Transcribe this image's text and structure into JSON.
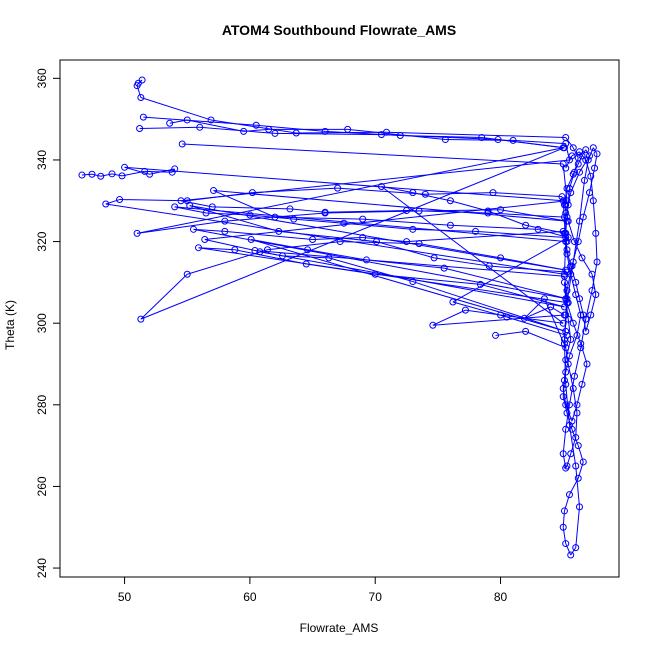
{
  "chart_data": {
    "type": "scatter",
    "title": "ATOM4 Southbound Flowrate_AMS",
    "xlabel": "Flowrate_AMS",
    "ylabel": "Theta (K)",
    "xlim": [
      46.5,
      87.8
    ],
    "ylim": [
      242.5,
      359.8
    ],
    "x_ticks": [
      50,
      60,
      70,
      80
    ],
    "y_ticks": [
      240,
      260,
      280,
      300,
      320,
      340,
      360
    ],
    "grid": false,
    "legend": "none",
    "color": "#0000ff",
    "marker": "open-circle",
    "connected": true,
    "series": [
      {
        "x": [
          51.4,
          51.1,
          51.0,
          51.3,
          56.9,
          63.7,
          70.9,
          85.2,
          85.8,
          86.2,
          85.9,
          85.5,
          85.4,
          85.3,
          85.2,
          85.3,
          85.6,
          86.0,
          86.3,
          86.6,
          86.8,
          87.2,
          87.6,
          87.3,
          86.5,
          85.9,
          85.4,
          85.1,
          85.3,
          85.8,
          86.2,
          86.5,
          86.8,
          87.1,
          86.3,
          85.6,
          85.2,
          85.1,
          85.3,
          85.6,
          86.0,
          86.4,
          86.1,
          85.5,
          85.2,
          85.0,
          85.2,
          85.7,
          86.1,
          86.5,
          86.9,
          86.4,
          85.8,
          85.3,
          85.1,
          85.2,
          85.4,
          85.6,
          85.2,
          85.1,
          85.0,
          85.3,
          85.7,
          86.2,
          86.6,
          86.2,
          85.5,
          85.1,
          85.0,
          85.2,
          85.6,
          86.0,
          86.3,
          86.0,
          85.5,
          85.2,
          85.1,
          85.3,
          85.8,
          86.3,
          86.7,
          87.0,
          87.4,
          87.7,
          87.5,
          87.1,
          86.6,
          86.2,
          85.7,
          85.3,
          85.2,
          85.1,
          85.4,
          85.8,
          86.1,
          86.0,
          85.6,
          85.3,
          85.2,
          85.0,
          85.2,
          85.5,
          85.9,
          86.4,
          86.8,
          87.3,
          87.7,
          87.6,
          87.4,
          87.2,
          86.8,
          86.3,
          85.7,
          85.2
        ],
        "y": [
          359.6,
          358.8,
          358.2,
          355.3,
          349.8,
          346.6,
          346.8,
          345.5,
          343.0,
          340.5,
          337.0,
          333.0,
          329.0,
          326.0,
          322.0,
          318.0,
          314.0,
          310.0,
          306.0,
          302.0,
          298.0,
          302.0,
          307.0,
          312.0,
          316.0,
          320.0,
          325.0,
          329.0,
          333.0,
          336.5,
          339.0,
          341.0,
          342.5,
          341.0,
          337.0,
          332.0,
          327.0,
          322.0,
          317.0,
          312.0,
          307.0,
          302.0,
          297.0,
          292.0,
          288.0,
          284.0,
          280.0,
          276.0,
          280.0,
          285.0,
          290.0,
          295.0,
          300.0,
          305.0,
          310.0,
          306.0,
          301.0,
          296.0,
          291.0,
          286.0,
          282.0,
          278.0,
          274.0,
          270.0,
          266.0,
          262.0,
          258.0,
          254.0,
          250.0,
          246.0,
          243.2,
          245.0,
          255.0,
          265.0,
          275.0,
          285.0,
          295.0,
          305.0,
          315.0,
          325.0,
          335.0,
          340.0,
          343.0,
          341.5,
          338.0,
          332.0,
          326.0,
          320.0,
          314.0,
          308.0,
          302.0,
          296.0,
          290.0,
          284.0,
          278.0,
          272.0,
          268.0,
          265.0,
          264.5,
          268.0,
          274.0,
          280.0,
          287.0,
          294.0,
          301.0,
          308.0,
          315.0,
          322.0,
          330.0,
          336.0,
          340.0,
          342.0,
          341.0,
          338.0
        ]
      },
      {
        "x": [
          46.6,
          47.4,
          48.1,
          49.0,
          49.8,
          51.6,
          53.8,
          54.0,
          52.0,
          50.0,
          85.0,
          85.2,
          85.1,
          48.5,
          49.6,
          55.0,
          60.2,
          67.0,
          74.0,
          79.4,
          84.9,
          85.2
        ],
        "y": [
          336.3,
          336.5,
          336.0,
          336.6,
          336.1,
          337.2,
          337.0,
          337.8,
          336.5,
          338.2,
          330.0,
          320.0,
          312.0,
          329.2,
          330.3,
          330.0,
          332.0,
          333.1,
          331.6,
          332.0,
          331.0,
          329.0
        ]
      },
      {
        "x": [
          53.6,
          55.0,
          59.5,
          61.5,
          67.8,
          75.6,
          81.0,
          85.2,
          85.5,
          54.5,
          57.0,
          63.2,
          66.0,
          72.5,
          79.0,
          85.1,
          85.3,
          54.0,
          56.5,
          60.0,
          63.5,
          67.5,
          73.0,
          78.0,
          85.2
        ],
        "y": [
          349.0,
          349.8,
          347.0,
          347.5,
          347.5,
          345.0,
          344.8,
          344.0,
          340.0,
          330.0,
          328.5,
          328.0,
          327.2,
          327.6,
          327.0,
          326.0,
          320.0,
          328.5,
          327.0,
          326.5,
          325.5,
          324.5,
          323.0,
          322.5,
          321.0
        ]
      },
      {
        "x": [
          54.6,
          85.0,
          85.3,
          56.4,
          60.4,
          85.1,
          85.4,
          55.9,
          58.8,
          64.5,
          70.0,
          78.4,
          85.1,
          60.8,
          62.6,
          66.3,
          73.0,
          85.2,
          60.1,
          64.6,
          69.3,
          75.5,
          85.3,
          55.5,
          58.0,
          65.0,
          69.0,
          72.5,
          85.0
        ],
        "y": [
          343.9,
          339.0,
          330.0,
          320.5,
          317.8,
          311.5,
          305.0,
          318.5,
          318.0,
          314.5,
          312.0,
          309.5,
          304.0,
          317.5,
          316.5,
          316.0,
          310.2,
          298.0,
          320.5,
          318.0,
          315.5,
          313.5,
          306.0,
          323.0,
          322.5,
          320.5,
          321.0,
          320.0,
          322.5
        ]
      },
      {
        "x": [
          51.2,
          56.0,
          62.0,
          70.5,
          79.8,
          85.0,
          51.0,
          58.0,
          66.0,
          73.5,
          80.0,
          85.3,
          57.1,
          62.0,
          69.0,
          76.0,
          83.0,
          85.4,
          76.2,
          80.5,
          85.3
        ],
        "y": [
          347.7,
          348.0,
          346.5,
          346.2,
          345.0,
          343.0,
          322.0,
          325.0,
          327.0,
          327.5,
          327.8,
          325.0,
          332.5,
          326.0,
          325.5,
          324.0,
          323.0,
          321.0,
          305.2,
          301.5,
          297.0
        ]
      },
      {
        "x": [
          51.5,
          60.5,
          66.0,
          72.0,
          78.5,
          85.1,
          51.3,
          55.0,
          61.4,
          67.2,
          73.5,
          80.0,
          85.2,
          55.2,
          62.3,
          70.1,
          74.7,
          79.1,
          85.3
        ],
        "y": [
          350.5,
          348.5,
          347.0,
          346.0,
          345.5,
          343.0,
          301.0,
          312.0,
          318.0,
          320.0,
          319.5,
          316.0,
          313.0,
          328.8,
          322.5,
          320.0,
          316.0,
          314.0,
          312.5
        ]
      },
      {
        "x": [
          79.6,
          82.0,
          85.2,
          83.5,
          81.9,
          84.0,
          85.1,
          74.6,
          77.2,
          80.0,
          85.0,
          70.5,
          73.0,
          76.0,
          79.0,
          82.0,
          85.2
        ],
        "y": [
          297.0,
          298.0,
          294.0,
          306.0,
          301.2,
          304.0,
          302.0,
          299.5,
          303.2,
          302.0,
          300.0,
          333.5,
          332.0,
          330.0,
          327.5,
          324.0,
          322.0
        ]
      }
    ]
  }
}
